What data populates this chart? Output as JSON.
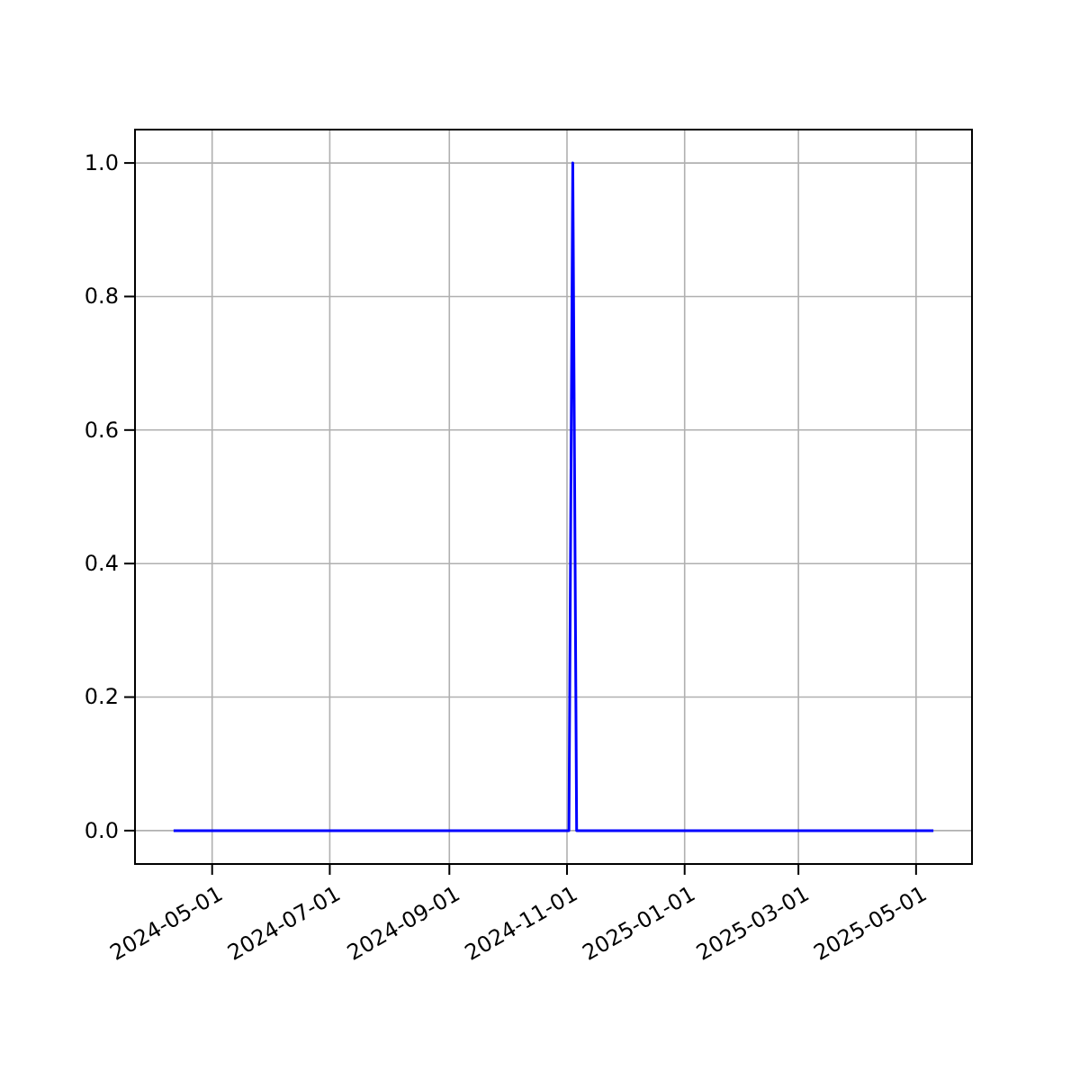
{
  "chart_data": {
    "type": "line",
    "x": [
      "2024-04-11",
      "2024-11-02",
      "2024-11-04",
      "2024-11-06",
      "2025-05-10"
    ],
    "series": [
      {
        "color": "#0000ff",
        "values": [
          0,
          0,
          1,
          0,
          0
        ]
      }
    ],
    "xlim": [
      "2024-03-22",
      "2025-05-30"
    ],
    "xticks": [
      {
        "value": "2024-05-01",
        "label": "2024-05-01"
      },
      {
        "value": "2024-07-01",
        "label": "2024-07-01"
      },
      {
        "value": "2024-09-01",
        "label": "2024-09-01"
      },
      {
        "value": "2024-11-01",
        "label": "2024-11-01"
      },
      {
        "value": "2025-01-01",
        "label": "2025-01-01"
      },
      {
        "value": "2025-03-01",
        "label": "2025-03-01"
      },
      {
        "value": "2025-05-01",
        "label": "2025-05-01"
      }
    ],
    "ylim": [
      -0.05,
      1.05
    ],
    "yticks": [
      {
        "value": 0,
        "label": "0.0"
      },
      {
        "value": 0.2,
        "label": "0.2"
      },
      {
        "value": 0.4,
        "label": "0.4"
      },
      {
        "value": 0.6,
        "label": "0.6"
      },
      {
        "value": 0.8,
        "label": "0.8"
      },
      {
        "value": 1,
        "label": "1.0"
      }
    ],
    "grid": true,
    "line_style": "solid"
  }
}
